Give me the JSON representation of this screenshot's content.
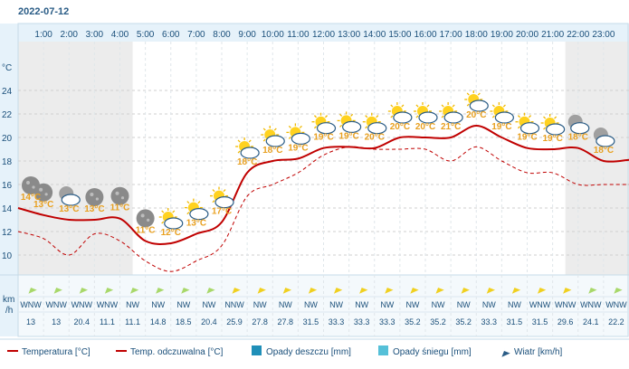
{
  "date": "2022-07-12",
  "units": {
    "temp_axis": "°C",
    "wind_axis_line1": "km",
    "wind_axis_line2": "/h"
  },
  "legend": [
    {
      "key": "temp",
      "label": "Temperatura [°C]",
      "color": "#c00000",
      "kind": "line"
    },
    {
      "key": "feels",
      "label": "Temp. odczuwalna [°C]",
      "color": "#c00000",
      "kind": "line"
    },
    {
      "key": "rain",
      "label": "Opady deszczu [mm]",
      "color": "#1f8fb8",
      "kind": "box"
    },
    {
      "key": "snow",
      "label": "Opady śniegu [mm]",
      "color": "#55c0d8",
      "kind": "box"
    },
    {
      "key": "wind",
      "label": "Wiatr [km/h]",
      "color": "#2a5c86",
      "kind": "arrow"
    }
  ],
  "colors": {
    "temp": "#c00000",
    "feels": "#c00000",
    "label_day": "#e8a020",
    "label_night": "#e8a020",
    "header_bg": "#e6f2fa",
    "axis_text": "#1a4f7a",
    "shade": "#ececec",
    "grid": "#cfcfcf",
    "wind_arrow_calm": "#a8d86a",
    "wind_arrow_strong": "#f0d020"
  },
  "chart_data": {
    "type": "line",
    "x": [
      "0:00",
      "1:00",
      "2:00",
      "3:00",
      "4:00",
      "5:00",
      "6:00",
      "7:00",
      "8:00",
      "9:00",
      "10:00",
      "11:00",
      "12:00",
      "13:00",
      "14:00",
      "15:00",
      "16:00",
      "17:00",
      "18:00",
      "19:00",
      "20:00",
      "21:00",
      "22:00",
      "23:00",
      "24:00"
    ],
    "hour_labels": [
      "1:00",
      "2:00",
      "3:00",
      "4:00",
      "5:00",
      "6:00",
      "7:00",
      "8:00",
      "9:00",
      "10:00",
      "11:00",
      "12:00",
      "13:00",
      "14:00",
      "15:00",
      "16:00",
      "17:00",
      "18:00",
      "19:00",
      "20:00",
      "21:00",
      "22:00",
      "23:00"
    ],
    "y_ticks": [
      "24",
      "22",
      "20",
      "18",
      "16",
      "14",
      "12",
      "10"
    ],
    "y_tick_values": [
      24,
      22,
      20,
      18,
      16,
      14,
      12,
      10
    ],
    "ylim": [
      8,
      26
    ],
    "series": [
      {
        "name": "Temperatura [°C]",
        "values": [
          14.0,
          13.4,
          13.0,
          13.0,
          13.1,
          11.2,
          11.0,
          11.8,
          12.8,
          17.0,
          18.0,
          18.2,
          19.1,
          19.2,
          19.1,
          20.0,
          20.0,
          20.0,
          21.0,
          20.0,
          19.1,
          19.0,
          19.1,
          18.0,
          18.1
        ]
      },
      {
        "name": "Temp. odczuwalna [°C]",
        "values": [
          12.0,
          11.4,
          10.0,
          11.8,
          11.2,
          9.5,
          8.6,
          9.5,
          10.8,
          15.0,
          16.0,
          17.0,
          18.5,
          19.2,
          19.0,
          19.0,
          19.0,
          18.0,
          19.2,
          18.0,
          17.0,
          17.0,
          16.0,
          16.0,
          16.0
        ]
      }
    ],
    "icons": [
      "night-moon",
      "night-cloud",
      "night-moon",
      "night-moon",
      "night-moon",
      "partly-cloudy",
      "partly-cloudy",
      "partly-cloudy",
      "partly-cloudy",
      "partly-cloudy",
      "partly-cloudy",
      "partly-cloudy",
      "partly-cloudy",
      "partly-cloudy",
      "partly-cloudy",
      "partly-cloudy",
      "partly-cloudy",
      "partly-cloudy",
      "partly-cloudy",
      "partly-cloudy",
      "partly-cloudy",
      "night-cloud",
      "night-cloud"
    ],
    "temp_labels": [
      "14°C",
      "13°C",
      "13°C",
      "13°C",
      "11°C",
      "11°C",
      "12°C",
      "13°C",
      "17°C",
      "18°C",
      "18°C",
      "19°C",
      "19°C",
      "19°C",
      "20°C",
      "20°C",
      "20°C",
      "21°C",
      "20°C",
      "19°C",
      "19°C",
      "19°C",
      "18°C",
      "18°C"
    ],
    "wind_dirs": [
      "WNW",
      "WNW",
      "WNW",
      "WNW",
      "NW",
      "NW",
      "NW",
      "NW",
      "NNW",
      "NW",
      "NW",
      "NW",
      "NW",
      "NW",
      "NW",
      "NW",
      "NW",
      "NW",
      "NW",
      "NW",
      "WNW",
      "WNW",
      "WNW",
      "WNW"
    ],
    "wind_speeds": [
      "13",
      "13",
      "20.4",
      "11.1",
      "11.1",
      "14.8",
      "18.5",
      "20.4",
      "25.9",
      "27.8",
      "27.8",
      "31.5",
      "33.3",
      "33.3",
      "33.3",
      "35.2",
      "35.2",
      "35.2",
      "33.3",
      "31.5",
      "31.5",
      "29.6",
      "24.1",
      "22.2"
    ],
    "shaded_hours": [
      [
        0,
        4.5
      ],
      [
        21.5,
        24
      ]
    ]
  }
}
